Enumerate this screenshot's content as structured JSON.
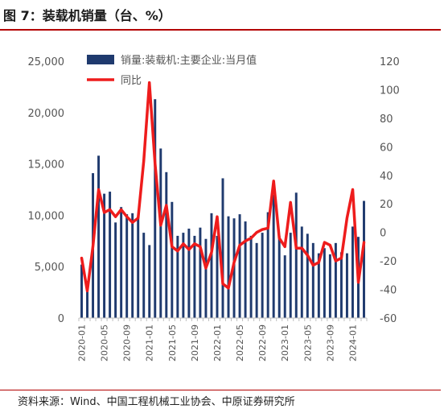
{
  "figure": {
    "title": "图 7：装载机销量（台、%）",
    "source": "资料来源：Wind、中国工程机械工业协会、中原证券研究所"
  },
  "chart_data": {
    "type": "bar",
    "x": [
      "2020-01",
      "2020-02",
      "2020-03",
      "2020-04",
      "2020-05",
      "2020-06",
      "2020-07",
      "2020-08",
      "2020-09",
      "2020-10",
      "2020-11",
      "2020-12",
      "2021-01",
      "2021-02",
      "2021-03",
      "2021-04",
      "2021-05",
      "2021-06",
      "2021-07",
      "2021-08",
      "2021-09",
      "2021-10",
      "2021-11",
      "2021-12",
      "2022-01",
      "2022-02",
      "2022-03",
      "2022-04",
      "2022-05",
      "2022-06",
      "2022-07",
      "2022-08",
      "2022-09",
      "2022-10",
      "2022-11",
      "2022-12",
      "2023-01",
      "2023-02",
      "2023-03",
      "2023-04",
      "2023-05",
      "2023-06",
      "2023-07",
      "2023-08",
      "2023-09",
      "2023-10",
      "2023-11",
      "2023-12",
      "2024-01",
      "2024-02",
      "2024-03"
    ],
    "x_tick_labels": [
      "2020-01",
      "2020-05",
      "2020-09",
      "2021-01",
      "2021-05",
      "2021-09",
      "2022-01",
      "2022-05",
      "2022-09",
      "2023-01",
      "2023-05",
      "2023-09",
      "2024-01"
    ],
    "x_tick_every": 4,
    "series": [
      {
        "name": "销量:装载机:主要企业:当月值",
        "axis": "left",
        "kind": "bar",
        "color": "#1f3a6e",
        "values": [
          5200,
          3600,
          14100,
          15800,
          12100,
          12300,
          9300,
          10800,
          10100,
          10200,
          9800,
          8300,
          7100,
          21300,
          16500,
          14200,
          11300,
          8000,
          8300,
          8700,
          8000,
          8800,
          7700,
          10200,
          8000,
          13600,
          9900,
          9700,
          10100,
          9400,
          8000,
          7300,
          8300,
          10300,
          12000,
          8000,
          6100,
          8300,
          12200,
          8900,
          8200,
          7300,
          6300,
          6800,
          6200,
          7300,
          6400,
          6300,
          8900,
          7900,
          11400
        ]
      },
      {
        "name": "同比",
        "axis": "right",
        "kind": "line",
        "color": "#ee1c1c",
        "values": [
          -18,
          -41,
          -10,
          30,
          14,
          16,
          11,
          16,
          11,
          7,
          10,
          50,
          105,
          48,
          5,
          19,
          -10,
          -13,
          -8,
          -12,
          -8,
          -10,
          -25,
          -14,
          11,
          -36,
          -39,
          -21,
          -9,
          -6,
          -4,
          0,
          2,
          3,
          36,
          -4,
          -10,
          21,
          -11,
          -11,
          -16,
          -23,
          -21,
          -7,
          -9,
          -20,
          -18,
          10,
          30,
          -35,
          -7
        ]
      }
    ],
    "y_left": {
      "min": 0,
      "max": 25000,
      "ticks": [
        "0",
        "5,000",
        "10,000",
        "15,000",
        "20,000",
        "25,000"
      ]
    },
    "y_right": {
      "min": -60,
      "max": 120,
      "ticks": [
        "-60",
        "-40",
        "-20",
        "0",
        "20",
        "40",
        "60",
        "80",
        "100",
        "120"
      ]
    },
    "legend_position": "top-left",
    "grid": false
  }
}
